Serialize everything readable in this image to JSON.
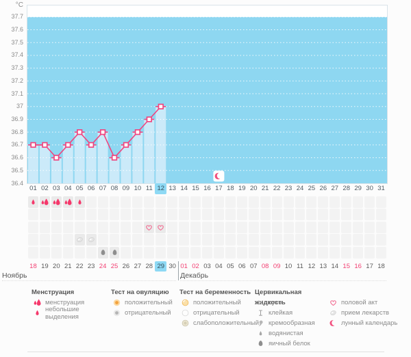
{
  "chart_data": {
    "type": "line",
    "ylabel": "°C",
    "ylim": [
      36.4,
      37.79
    ],
    "grid": "dotted-horizontal-white",
    "yticks": [
      "37.7",
      "37.6",
      "37.5",
      "37.4",
      "37.3",
      "37.2",
      "37.1",
      "37",
      "36.9",
      "36.8",
      "36.7",
      "36.6",
      "36.5",
      "36.4"
    ],
    "cycle_days": [
      "01",
      "02",
      "03",
      "04",
      "05",
      "06",
      "07",
      "08",
      "09",
      "10",
      "11",
      "12",
      "13",
      "14",
      "15",
      "16",
      "17",
      "18",
      "19",
      "20",
      "21",
      "22",
      "23",
      "24",
      "25",
      "26",
      "27",
      "28",
      "29",
      "30",
      "31"
    ],
    "series": [
      {
        "name": "temperature",
        "x": [
          1,
          2,
          3,
          4,
          5,
          6,
          7,
          8,
          9,
          10,
          11,
          12
        ],
        "values": [
          36.7,
          36.7,
          36.6,
          36.7,
          36.8,
          36.7,
          36.8,
          36.6,
          36.7,
          36.8,
          36.9,
          37
        ]
      }
    ],
    "today_day": 12,
    "moon_day": 17,
    "colors": {
      "plot_bg": "#8ed7f1",
      "column": "#cbeaf9",
      "line": "#f0457f",
      "highlight": "#8ed9f4",
      "drop": "#f5386b",
      "heart": "#f26a90",
      "moon": "#f2517f",
      "red_date": "#f23f72"
    }
  },
  "symptom_rows": [
    {
      "name": "menstruation",
      "marks": [
        {
          "day": 1,
          "icon": "drop-small"
        },
        {
          "day": 2,
          "icon": "drop-large"
        },
        {
          "day": 3,
          "icon": "drop-large"
        },
        {
          "day": 4,
          "icon": "drop-large"
        },
        {
          "day": 5,
          "icon": "drop-small"
        }
      ]
    },
    {
      "name": "tests",
      "marks": []
    },
    {
      "name": "intercourse",
      "marks": [
        {
          "day": 11,
          "icon": "heart"
        },
        {
          "day": 12,
          "icon": "heart"
        }
      ]
    },
    {
      "name": "medication",
      "marks": [
        {
          "day": 5,
          "icon": "pill"
        },
        {
          "day": 6,
          "icon": "pill"
        }
      ]
    },
    {
      "name": "cervical-fluid",
      "marks": [
        {
          "day": 7,
          "icon": "eggwhite"
        },
        {
          "day": 8,
          "icon": "eggwhite"
        }
      ]
    }
  ],
  "calendar": {
    "months": [
      "Ноябрь",
      "Декабрь"
    ],
    "month_divider_after": 13,
    "dates": [
      {
        "label": "18",
        "month": 0,
        "red": true
      },
      {
        "label": "19",
        "month": 0,
        "red": false
      },
      {
        "label": "20",
        "month": 0,
        "red": false
      },
      {
        "label": "21",
        "month": 0,
        "red": false
      },
      {
        "label": "22",
        "month": 0,
        "red": false
      },
      {
        "label": "23",
        "month": 0,
        "red": false
      },
      {
        "label": "24",
        "month": 0,
        "red": true
      },
      {
        "label": "25",
        "month": 0,
        "red": true
      },
      {
        "label": "26",
        "month": 0,
        "red": false
      },
      {
        "label": "27",
        "month": 0,
        "red": false
      },
      {
        "label": "28",
        "month": 0,
        "red": false
      },
      {
        "label": "29",
        "month": 0,
        "red": false,
        "today": true
      },
      {
        "label": "30",
        "month": 0,
        "red": false
      },
      {
        "label": "01",
        "month": 1,
        "red": true
      },
      {
        "label": "02",
        "month": 1,
        "red": true
      },
      {
        "label": "03",
        "month": 1,
        "red": false
      },
      {
        "label": "04",
        "month": 1,
        "red": false
      },
      {
        "label": "05",
        "month": 1,
        "red": false
      },
      {
        "label": "06",
        "month": 1,
        "red": false
      },
      {
        "label": "07",
        "month": 1,
        "red": false
      },
      {
        "label": "08",
        "month": 1,
        "red": true
      },
      {
        "label": "09",
        "month": 1,
        "red": true
      },
      {
        "label": "10",
        "month": 1,
        "red": false
      },
      {
        "label": "11",
        "month": 1,
        "red": false
      },
      {
        "label": "12",
        "month": 1,
        "red": false
      },
      {
        "label": "13",
        "month": 1,
        "red": false
      },
      {
        "label": "14",
        "month": 1,
        "red": false
      },
      {
        "label": "15",
        "month": 1,
        "red": true
      },
      {
        "label": "16",
        "month": 1,
        "red": true
      },
      {
        "label": "17",
        "month": 1,
        "red": false
      },
      {
        "label": "18",
        "month": 1,
        "red": false
      }
    ]
  },
  "legend": {
    "columns": [
      {
        "title": "Менструация",
        "items": [
          {
            "icon": "drop-large",
            "label": "менструация"
          },
          {
            "icon": "drop-small",
            "label": "небольшие выделения"
          }
        ]
      },
      {
        "title": "Тест на овуляцию",
        "items": [
          {
            "icon": "ovul-positive",
            "label": "положительный"
          },
          {
            "icon": "ovul-negative",
            "label": "отрицательный"
          }
        ]
      },
      {
        "title": "Тест на беременность",
        "items": [
          {
            "icon": "preg-positive",
            "label": "положительный"
          },
          {
            "icon": "preg-negative",
            "label": "отрицательный"
          },
          {
            "icon": "preg-weak",
            "label": "слабоположительный"
          }
        ]
      },
      {
        "title": "Цервикальная жидкость",
        "items": [
          {
            "icon": "dry",
            "label": "сухо"
          },
          {
            "icon": "sticky",
            "label": "клейкая"
          },
          {
            "icon": "creamy",
            "label": "кремообразная"
          },
          {
            "icon": "watery",
            "label": "водянистая"
          },
          {
            "icon": "eggwhite",
            "label": "яичный белок"
          }
        ]
      },
      {
        "title": "",
        "items": [
          {
            "icon": "heart",
            "label": "половой акт"
          },
          {
            "icon": "pill",
            "label": "прием лекарств"
          },
          {
            "icon": "moon",
            "label": "лунный календарь"
          }
        ]
      }
    ]
  }
}
